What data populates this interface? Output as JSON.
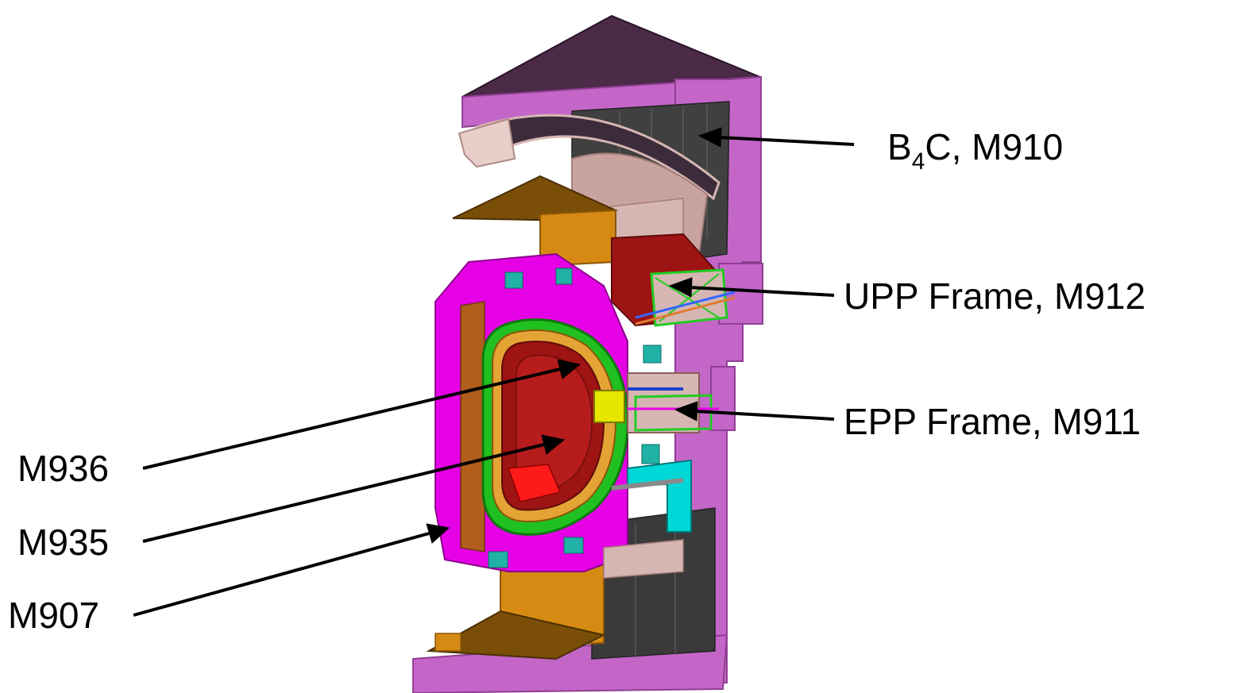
{
  "labels": {
    "b4c_prefix": "B",
    "b4c_subscript": "4",
    "b4c_suffix": "C, M910",
    "upp_frame": "UPP Frame, M912",
    "epp_frame": "EPP Frame, M911",
    "m936": "M936",
    "m935": "M935",
    "m907": "M907"
  },
  "colors": {
    "shield_pink": "#c466c8",
    "shield_dark": "#4b2a48",
    "magenta": "#e600e6",
    "orange": "#d78a13",
    "orange_dark": "#7a4e07",
    "grey_dark": "#404040",
    "grey_mid": "#8a8a8a",
    "salmon": "#d6b6b2",
    "red": "#9e1313",
    "green": "#22cc22",
    "cyan": "#00d8d8",
    "yellow": "#e6e600",
    "arrow": "#000000"
  }
}
